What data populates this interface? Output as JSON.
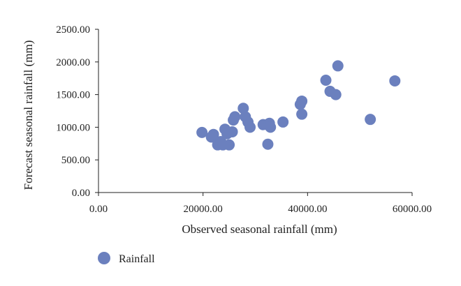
{
  "chart_data": {
    "type": "scatter",
    "title": "",
    "xlabel": "Observed seasonal rainfall (mm)",
    "ylabel": "Forecast seasonal rainfall (mm)",
    "xlim": [
      0,
      60000
    ],
    "ylim": [
      0,
      2500
    ],
    "xticks": [
      0,
      20000,
      40000,
      60000
    ],
    "xtick_labels": [
      "0.00",
      "20000.00",
      "40000.00",
      "60000.00"
    ],
    "yticks": [
      0,
      500,
      1000,
      1500,
      2000,
      2500
    ],
    "ytick_labels": [
      "0.00",
      "500.00",
      "1000.00",
      "1500.00",
      "2000.00",
      "2500.00"
    ],
    "grid": false,
    "legend_position": "bottom-left",
    "marker_color": "#6b80be",
    "series": [
      {
        "name": "Rainfall",
        "points": [
          {
            "x": 19800,
            "y": 920
          },
          {
            "x": 21600,
            "y": 850
          },
          {
            "x": 22000,
            "y": 890
          },
          {
            "x": 22800,
            "y": 730
          },
          {
            "x": 23400,
            "y": 780
          },
          {
            "x": 23800,
            "y": 730
          },
          {
            "x": 24200,
            "y": 970
          },
          {
            "x": 24600,
            "y": 900
          },
          {
            "x": 25000,
            "y": 730
          },
          {
            "x": 25600,
            "y": 930
          },
          {
            "x": 25800,
            "y": 1110
          },
          {
            "x": 26100,
            "y": 1160
          },
          {
            "x": 27700,
            "y": 1290
          },
          {
            "x": 28100,
            "y": 1160
          },
          {
            "x": 28600,
            "y": 1080
          },
          {
            "x": 29000,
            "y": 1000
          },
          {
            "x": 31500,
            "y": 1040
          },
          {
            "x": 32400,
            "y": 740
          },
          {
            "x": 32700,
            "y": 1060
          },
          {
            "x": 32900,
            "y": 1000
          },
          {
            "x": 35300,
            "y": 1080
          },
          {
            "x": 38600,
            "y": 1350
          },
          {
            "x": 38900,
            "y": 1400
          },
          {
            "x": 38900,
            "y": 1200
          },
          {
            "x": 43500,
            "y": 1720
          },
          {
            "x": 44300,
            "y": 1550
          },
          {
            "x": 45400,
            "y": 1500
          },
          {
            "x": 45800,
            "y": 1940
          },
          {
            "x": 52000,
            "y": 1120
          },
          {
            "x": 56700,
            "y": 1710
          }
        ]
      }
    ]
  }
}
